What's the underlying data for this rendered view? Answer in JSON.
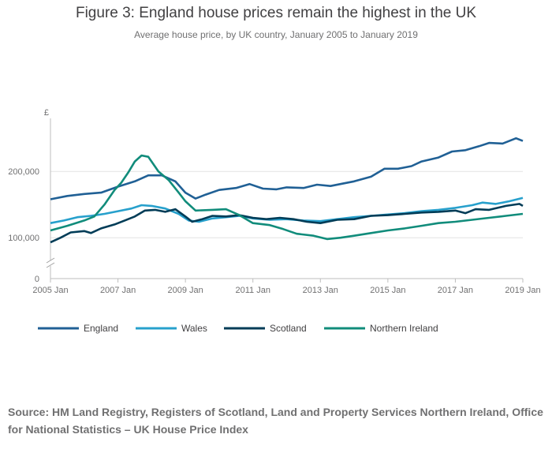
{
  "chart_data": {
    "type": "line",
    "title": "Figure 3: England house prices remain the highest in the UK",
    "subtitle": "Average house price, by UK country, January 2005 to January 2019",
    "ylabel": "£",
    "xlim": [
      2005.0,
      2019.0
    ],
    "ylim": [
      0,
      280000
    ],
    "y_axis_break": true,
    "y_ticks": [
      {
        "value": 0,
        "label": "0"
      },
      {
        "value": 100000,
        "label": "100,000"
      },
      {
        "value": 200000,
        "label": "200,000"
      }
    ],
    "x_ticks": [
      {
        "value": 2005,
        "label": "2005 Jan"
      },
      {
        "value": 2007,
        "label": "2007 Jan"
      },
      {
        "value": 2009,
        "label": "2009 Jan"
      },
      {
        "value": 2011,
        "label": "2011 Jan"
      },
      {
        "value": 2013,
        "label": "2013 Jan"
      },
      {
        "value": 2015,
        "label": "2015 Jan"
      },
      {
        "value": 2017,
        "label": "2017 Jan"
      },
      {
        "value": 2019,
        "label": "2019 Jan"
      }
    ],
    "grid": true,
    "legend_position": "bottom",
    "series": [
      {
        "name": "England",
        "color": "#206095",
        "points": [
          [
            2005.0,
            158000
          ],
          [
            2005.5,
            163000
          ],
          [
            2006.0,
            166000
          ],
          [
            2006.5,
            168000
          ],
          [
            2007.0,
            177000
          ],
          [
            2007.5,
            185000
          ],
          [
            2007.9,
            194000
          ],
          [
            2008.3,
            194000
          ],
          [
            2008.7,
            185000
          ],
          [
            2009.0,
            168000
          ],
          [
            2009.3,
            159000
          ],
          [
            2009.6,
            165000
          ],
          [
            2010.0,
            172000
          ],
          [
            2010.5,
            175000
          ],
          [
            2010.9,
            181000
          ],
          [
            2011.3,
            174000
          ],
          [
            2011.7,
            173000
          ],
          [
            2012.0,
            176000
          ],
          [
            2012.5,
            175000
          ],
          [
            2012.9,
            180000
          ],
          [
            2013.3,
            178000
          ],
          [
            2013.7,
            182000
          ],
          [
            2014.0,
            185000
          ],
          [
            2014.5,
            192000
          ],
          [
            2014.9,
            204000
          ],
          [
            2015.3,
            204000
          ],
          [
            2015.7,
            208000
          ],
          [
            2016.0,
            215000
          ],
          [
            2016.5,
            221000
          ],
          [
            2016.9,
            230000
          ],
          [
            2017.3,
            232000
          ],
          [
            2017.7,
            238000
          ],
          [
            2018.0,
            243000
          ],
          [
            2018.4,
            242000
          ],
          [
            2018.8,
            250000
          ],
          [
            2019.0,
            246000
          ]
        ]
      },
      {
        "name": "Wales",
        "color": "#27a0cc",
        "points": [
          [
            2005.0,
            122000
          ],
          [
            2005.4,
            126000
          ],
          [
            2005.8,
            131000
          ],
          [
            2006.2,
            133000
          ],
          [
            2006.6,
            136000
          ],
          [
            2007.0,
            140000
          ],
          [
            2007.4,
            144000
          ],
          [
            2007.7,
            149000
          ],
          [
            2008.0,
            148000
          ],
          [
            2008.4,
            144000
          ],
          [
            2008.8,
            136000
          ],
          [
            2009.1,
            126000
          ],
          [
            2009.4,
            124000
          ],
          [
            2009.8,
            129000
          ],
          [
            2010.2,
            131000
          ],
          [
            2010.6,
            133000
          ],
          [
            2011.0,
            129000
          ],
          [
            2011.5,
            127000
          ],
          [
            2012.0,
            128000
          ],
          [
            2012.5,
            126000
          ],
          [
            2013.0,
            125000
          ],
          [
            2013.5,
            128000
          ],
          [
            2014.0,
            131000
          ],
          [
            2014.5,
            133000
          ],
          [
            2015.0,
            135000
          ],
          [
            2015.5,
            137000
          ],
          [
            2016.0,
            140000
          ],
          [
            2016.5,
            142000
          ],
          [
            2017.0,
            145000
          ],
          [
            2017.5,
            149000
          ],
          [
            2017.8,
            153000
          ],
          [
            2018.2,
            151000
          ],
          [
            2018.6,
            155000
          ],
          [
            2019.0,
            160000
          ]
        ]
      },
      {
        "name": "Scotland",
        "color": "#003c57",
        "points": [
          [
            2005.0,
            93000
          ],
          [
            2005.3,
            100000
          ],
          [
            2005.6,
            108000
          ],
          [
            2006.0,
            110000
          ],
          [
            2006.2,
            107000
          ],
          [
            2006.5,
            114000
          ],
          [
            2006.9,
            120000
          ],
          [
            2007.2,
            126000
          ],
          [
            2007.5,
            132000
          ],
          [
            2007.8,
            141000
          ],
          [
            2008.1,
            142000
          ],
          [
            2008.4,
            139000
          ],
          [
            2008.7,
            143000
          ],
          [
            2009.0,
            132000
          ],
          [
            2009.2,
            124000
          ],
          [
            2009.5,
            128000
          ],
          [
            2009.8,
            133000
          ],
          [
            2010.2,
            132000
          ],
          [
            2010.6,
            134000
          ],
          [
            2011.0,
            130000
          ],
          [
            2011.4,
            128000
          ],
          [
            2011.8,
            130000
          ],
          [
            2012.2,
            128000
          ],
          [
            2012.6,
            124000
          ],
          [
            2013.0,
            122000
          ],
          [
            2013.5,
            127000
          ],
          [
            2014.0,
            128000
          ],
          [
            2014.5,
            133000
          ],
          [
            2015.0,
            134000
          ],
          [
            2015.5,
            136000
          ],
          [
            2016.0,
            138000
          ],
          [
            2016.5,
            139000
          ],
          [
            2017.0,
            141000
          ],
          [
            2017.3,
            137000
          ],
          [
            2017.6,
            143000
          ],
          [
            2018.0,
            142000
          ],
          [
            2018.5,
            148000
          ],
          [
            2018.9,
            151000
          ],
          [
            2019.0,
            148000
          ]
        ]
      },
      {
        "name": "Northern Ireland",
        "color": "#118c7b",
        "points": [
          [
            2005.0,
            111000
          ],
          [
            2005.5,
            118000
          ],
          [
            2006.0,
            126000
          ],
          [
            2006.3,
            132000
          ],
          [
            2006.6,
            150000
          ],
          [
            2006.9,
            172000
          ],
          [
            2007.1,
            183000
          ],
          [
            2007.3,
            198000
          ],
          [
            2007.5,
            215000
          ],
          [
            2007.7,
            224000
          ],
          [
            2007.9,
            222000
          ],
          [
            2008.2,
            200000
          ],
          [
            2008.5,
            187000
          ],
          [
            2008.8,
            168000
          ],
          [
            2009.0,
            155000
          ],
          [
            2009.3,
            141000
          ],
          [
            2009.8,
            142000
          ],
          [
            2010.2,
            143000
          ],
          [
            2010.6,
            134000
          ],
          [
            2011.0,
            122000
          ],
          [
            2011.5,
            119000
          ],
          [
            2011.9,
            113000
          ],
          [
            2012.3,
            106000
          ],
          [
            2012.8,
            103000
          ],
          [
            2013.2,
            98000
          ],
          [
            2013.6,
            100000
          ],
          [
            2014.0,
            103000
          ],
          [
            2014.5,
            107000
          ],
          [
            2015.0,
            111000
          ],
          [
            2015.5,
            114000
          ],
          [
            2016.0,
            118000
          ],
          [
            2016.5,
            122000
          ],
          [
            2017.0,
            124000
          ],
          [
            2017.5,
            127000
          ],
          [
            2018.0,
            130000
          ],
          [
            2018.5,
            133000
          ],
          [
            2019.0,
            136000
          ]
        ]
      }
    ]
  },
  "source": "Source: HM Land Registry, Registers of Scotland, Land and Property Services Northern Ireland, Office for National Statistics – UK House Price Index"
}
